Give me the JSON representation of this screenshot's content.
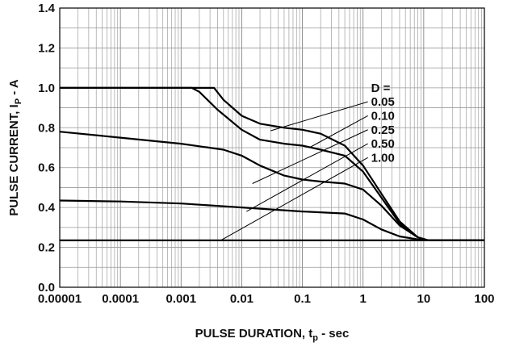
{
  "chart_data": {
    "type": "line",
    "title": "",
    "xlabel": "PULSE DURATION, t",
    "xlabel_sub": "p",
    "xlabel_suffix": " - sec",
    "ylabel": "PULSE CURRENT, I",
    "ylabel_sub": "P",
    "ylabel_suffix": " - A",
    "x_scale": "log",
    "xlim": [
      1e-05,
      100
    ],
    "ylim": [
      0.0,
      1.4
    ],
    "grid": true,
    "x_ticks": [
      1e-05,
      0.0001,
      0.001,
      0.01,
      0.1,
      1,
      10,
      100
    ],
    "x_tick_labels": [
      "0.00001",
      "0.0001",
      "0.001",
      "0.01",
      "0.1",
      "1",
      "10",
      "100"
    ],
    "y_ticks": [
      0.0,
      0.2,
      0.4,
      0.6,
      0.8,
      1.0,
      1.2,
      1.4
    ],
    "y_tick_labels": [
      "0.0",
      "0.2",
      "0.4",
      "0.6",
      "0.8",
      "1.0",
      "1.2",
      "1.4"
    ],
    "legend_header": "D =",
    "series": [
      {
        "name": "0.05",
        "x": [
          1e-05,
          0.0001,
          0.001,
          0.0035,
          0.005,
          0.01,
          0.02,
          0.05,
          0.1,
          0.2,
          0.5,
          1,
          2,
          4,
          8,
          12,
          100
        ],
        "y": [
          1.0,
          1.0,
          1.0,
          1.0,
          0.94,
          0.86,
          0.82,
          0.8,
          0.79,
          0.77,
          0.71,
          0.61,
          0.47,
          0.33,
          0.25,
          0.235,
          0.235
        ]
      },
      {
        "name": "0.10",
        "x": [
          1e-05,
          0.0001,
          0.0015,
          0.002,
          0.004,
          0.01,
          0.02,
          0.05,
          0.1,
          0.2,
          0.5,
          1,
          2,
          4,
          8,
          12,
          100
        ],
        "y": [
          1.0,
          1.0,
          1.0,
          0.98,
          0.89,
          0.79,
          0.74,
          0.72,
          0.71,
          0.69,
          0.66,
          0.58,
          0.45,
          0.32,
          0.25,
          0.235,
          0.235
        ]
      },
      {
        "name": "0.25",
        "x": [
          1e-05,
          0.0001,
          0.001,
          0.005,
          0.01,
          0.02,
          0.05,
          0.1,
          0.2,
          0.5,
          1,
          2,
          4,
          8,
          12,
          100
        ],
        "y": [
          0.78,
          0.75,
          0.72,
          0.69,
          0.66,
          0.61,
          0.56,
          0.54,
          0.53,
          0.52,
          0.49,
          0.41,
          0.31,
          0.25,
          0.235,
          0.235
        ]
      },
      {
        "name": "0.50",
        "x": [
          1e-05,
          0.0001,
          0.001,
          0.01,
          0.1,
          0.5,
          1,
          2,
          4,
          8,
          12,
          100
        ],
        "y": [
          0.435,
          0.43,
          0.42,
          0.4,
          0.38,
          0.37,
          0.34,
          0.29,
          0.255,
          0.24,
          0.235,
          0.235
        ]
      },
      {
        "name": "1.00",
        "x": [
          1e-05,
          100
        ],
        "y": [
          0.235,
          0.235
        ]
      }
    ],
    "leaders": [
      {
        "label": "0.05",
        "from": [
          0.03,
          0.785
        ],
        "to": [
          1.2,
          0.93
        ]
      },
      {
        "label": "0.10",
        "from": [
          0.13,
          0.7
        ],
        "to": [
          1.2,
          0.86
        ]
      },
      {
        "label": "0.25",
        "from": [
          0.015,
          0.52
        ],
        "to": [
          1.2,
          0.79
        ]
      },
      {
        "label": "0.50",
        "from": [
          0.012,
          0.38
        ],
        "to": [
          1.2,
          0.72
        ]
      },
      {
        "label": "1.00",
        "from": [
          0.0045,
          0.235
        ],
        "to": [
          1.2,
          0.65
        ]
      }
    ]
  }
}
